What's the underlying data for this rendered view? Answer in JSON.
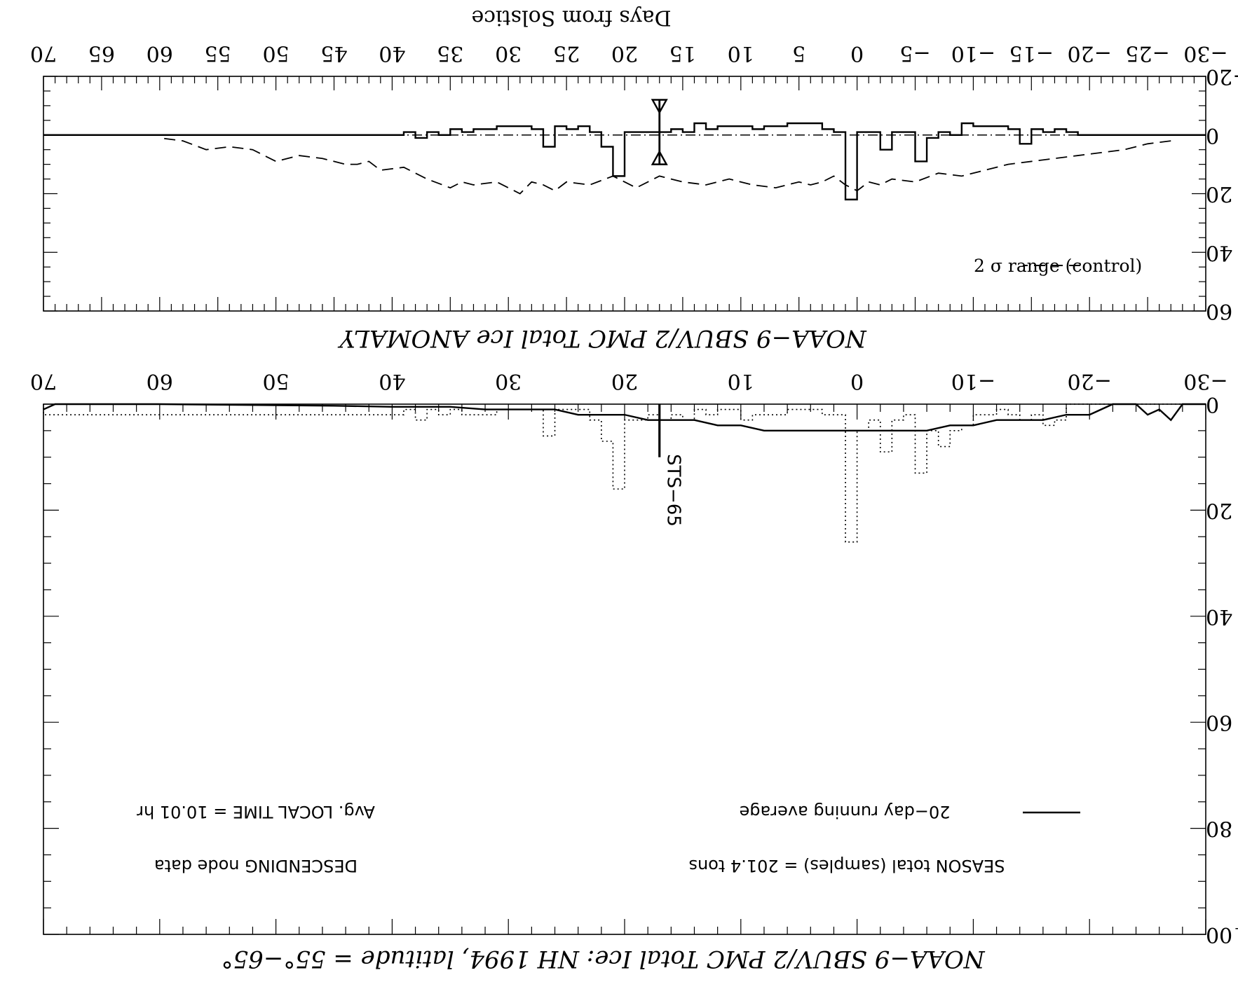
{
  "chart_data": [
    {
      "name": "top-panel",
      "type": "line",
      "title": "NOAA−9 SBUV/2 PMC Total Ice ANOMALY",
      "xlabel": "Days from Solstice",
      "x_ticks": [
        "−30",
        "−25",
        "−20",
        "−15",
        "−10",
        "−5",
        "0",
        "5",
        "10",
        "15",
        "20",
        "25",
        "30",
        "35",
        "40",
        "45",
        "50",
        "55",
        "60",
        "65",
        "70"
      ],
      "y_ticks": [
        "−20",
        "0",
        "20",
        "40",
        "60"
      ],
      "xlim": [
        -30,
        70
      ],
      "ylim": [
        -20,
        60
      ],
      "legend": [
        {
          "label": "2 σ range (control)",
          "style": "dashed"
        }
      ],
      "series": [
        {
          "name": "2 σ range (control)",
          "style": "dashed",
          "x": [
            -27,
            -25,
            -23,
            -21,
            -19,
            -17,
            -15,
            -13,
            -11,
            -9,
            -7,
            -5,
            -3,
            -2,
            -1,
            0,
            1,
            2,
            3,
            4,
            5,
            7,
            9,
            11,
            13,
            15,
            17,
            19,
            21,
            23,
            25,
            26,
            27,
            28,
            29,
            31,
            33,
            34,
            35,
            37,
            39,
            41,
            42,
            43,
            44,
            46,
            48,
            50,
            52,
            54,
            56,
            58,
            60
          ],
          "y": [
            2,
            3,
            5,
            6,
            7,
            8,
            9,
            10,
            12,
            14,
            13,
            16,
            15,
            17,
            16,
            19,
            17,
            14,
            16,
            17,
            16,
            18,
            17,
            15,
            17,
            16,
            14,
            18,
            14,
            17,
            16,
            19,
            17,
            16,
            20,
            16,
            17,
            16,
            18,
            15,
            11,
            12,
            9,
            10,
            10,
            8,
            7,
            9,
            5,
            4,
            5,
            2,
            1
          ]
        },
        {
          "name": "sample anomaly",
          "style": "step",
          "x": [
            -30,
            -20,
            -19,
            -18,
            -17,
            -16,
            -15,
            -14,
            -13,
            -12,
            -11,
            -10,
            -9,
            -8,
            -7,
            -6,
            -5,
            -4,
            -3,
            -2,
            -1,
            0,
            1,
            2,
            3,
            4,
            5,
            6,
            7,
            8,
            9,
            10,
            11,
            12,
            13,
            14,
            15,
            16,
            17,
            18,
            19,
            20,
            21,
            22,
            23,
            24,
            25,
            26,
            27,
            28,
            29,
            30,
            31,
            32,
            33,
            34,
            35,
            36,
            37,
            38,
            39,
            40,
            70
          ],
          "y": [
            0,
            0,
            -1,
            -2,
            -1,
            -2,
            3,
            -2,
            -3,
            -3,
            -3,
            -4,
            0,
            -1,
            1,
            9,
            -1,
            -1,
            5,
            -1,
            -1,
            22,
            -1,
            -2,
            -4,
            -4,
            -4,
            -3,
            -3,
            -2,
            -3,
            -3,
            -3,
            -2,
            -4,
            -1,
            -2,
            -1,
            -1,
            -1,
            -1,
            14,
            4,
            -1,
            -3,
            -2,
            -3,
            4,
            -2,
            -3,
            -3,
            -3,
            -2,
            -2,
            -1,
            -2,
            0,
            -1,
            1,
            -1,
            0,
            0,
            0
          ]
        },
        {
          "name": "zero line",
          "style": "dash-dot",
          "x": [
            -30,
            70
          ],
          "y": [
            0,
            0
          ]
        }
      ],
      "markers": [
        {
          "x": 17,
          "y_from": -12,
          "y_to": 10,
          "style": "double-arrow"
        }
      ]
    },
    {
      "name": "bottom-panel",
      "type": "line",
      "title": "NOAA−9 SBUV/2 PMC Total Ice:  NH 1994, latitude = 55°−65°",
      "x_ticks": [
        "−30",
        "−20",
        "−10",
        "0",
        "10",
        "20",
        "30",
        "40",
        "50",
        "60",
        "70"
      ],
      "y_ticks": [
        "0",
        "20",
        "40",
        "60",
        "80",
        "100"
      ],
      "xlim": [
        -30,
        70
      ],
      "ylim": [
        0,
        100
      ],
      "legend": [
        {
          "label": "20−day running average",
          "style": "solid"
        }
      ],
      "annotations": [
        "SEASON total (samples) = 201.4 tons",
        "DESCENDING node data",
        "Avg. LOCAL TIME = 10.01 hr",
        "STS−65"
      ],
      "series": [
        {
          "name": "20−day running average",
          "style": "solid",
          "x": [
            -30,
            -29,
            -28,
            -27,
            -26,
            -25,
            -24,
            -23,
            -22,
            -20,
            -18,
            -16,
            -14,
            -12,
            -10,
            -8,
            -6,
            -4,
            -2,
            0,
            2,
            4,
            6,
            8,
            10,
            12,
            14,
            16,
            18,
            20,
            22,
            24,
            26,
            28,
            30,
            32,
            35,
            40,
            45,
            50,
            55,
            60,
            65,
            69,
            70
          ],
          "y": [
            0,
            0,
            0,
            3,
            1,
            2,
            0,
            0,
            0,
            2,
            2,
            3,
            3,
            3,
            4,
            4,
            5,
            5,
            5,
            5,
            5,
            5,
            5,
            5,
            4,
            4,
            3,
            3,
            3,
            2,
            2,
            2,
            1,
            1,
            1,
            1,
            0.5,
            0.5,
            0.3,
            0.2,
            0.1,
            0,
            0,
            0,
            1
          ]
        },
        {
          "name": "daily samples",
          "style": "dotted-step",
          "x": [
            -30,
            -20,
            -19,
            -18,
            -17,
            -16,
            -15,
            -14,
            -13,
            -12,
            -11,
            -10,
            -9,
            -8,
            -7,
            -6,
            -5,
            -4,
            -3,
            -2,
            -1,
            0,
            1,
            2,
            3,
            4,
            5,
            6,
            7,
            8,
            9,
            10,
            11,
            12,
            13,
            14,
            15,
            16,
            17,
            18,
            19,
            20,
            21,
            22,
            23,
            24,
            25,
            26,
            27,
            28,
            29,
            30,
            31,
            32,
            33,
            34,
            35,
            36,
            37,
            38,
            39,
            40,
            70
          ],
          "y": [
            0,
            0,
            0,
            3,
            4,
            2,
            3,
            2,
            1,
            2,
            2,
            4,
            5,
            8,
            5,
            13,
            2,
            3,
            9,
            3,
            5,
            26,
            2,
            2,
            1,
            1,
            1,
            2,
            2,
            2,
            3,
            1,
            1,
            2,
            1,
            3,
            2,
            3,
            2,
            3,
            3,
            16,
            7,
            3,
            1,
            1,
            1,
            6,
            1,
            1,
            1,
            1,
            2,
            2,
            2,
            1,
            2,
            1,
            3,
            1,
            2,
            2,
            0
          ]
        }
      ],
      "markers": [
        {
          "x": 17,
          "y_from": 0,
          "y_to": 10,
          "label": "STS−65"
        }
      ]
    }
  ]
}
